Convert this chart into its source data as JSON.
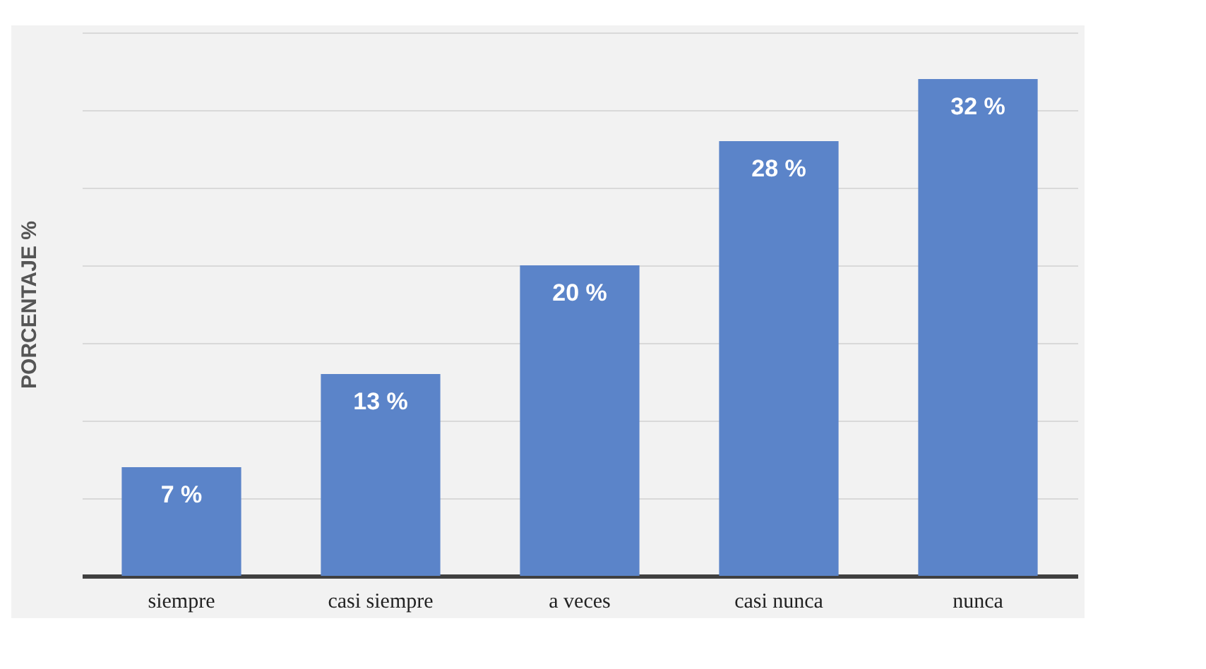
{
  "chart_data": {
    "type": "bar",
    "ylabel": "PORCENTAJE %",
    "categories": [
      "siempre",
      "casi siempre",
      "a veces",
      "casi nunca",
      "nunca"
    ],
    "values": [
      7,
      13,
      20,
      28,
      32
    ],
    "value_labels": [
      "7 %",
      "13 %",
      "20 %",
      "28 %",
      "32 %"
    ],
    "color": "#5b84c9",
    "ylim": [
      0,
      35
    ],
    "yticks": [
      {
        "value": 0,
        "label": null
      },
      {
        "value": 5,
        "label": null
      },
      {
        "value": 10,
        "label": null
      },
      {
        "value": 15,
        "label": null
      },
      {
        "value": 20,
        "label": null
      },
      {
        "value": 25,
        "label": null
      },
      {
        "value": 30,
        "label": null
      },
      {
        "value": 35,
        "label": null
      }
    ],
    "grid": "y",
    "tick_labels": "x"
  }
}
